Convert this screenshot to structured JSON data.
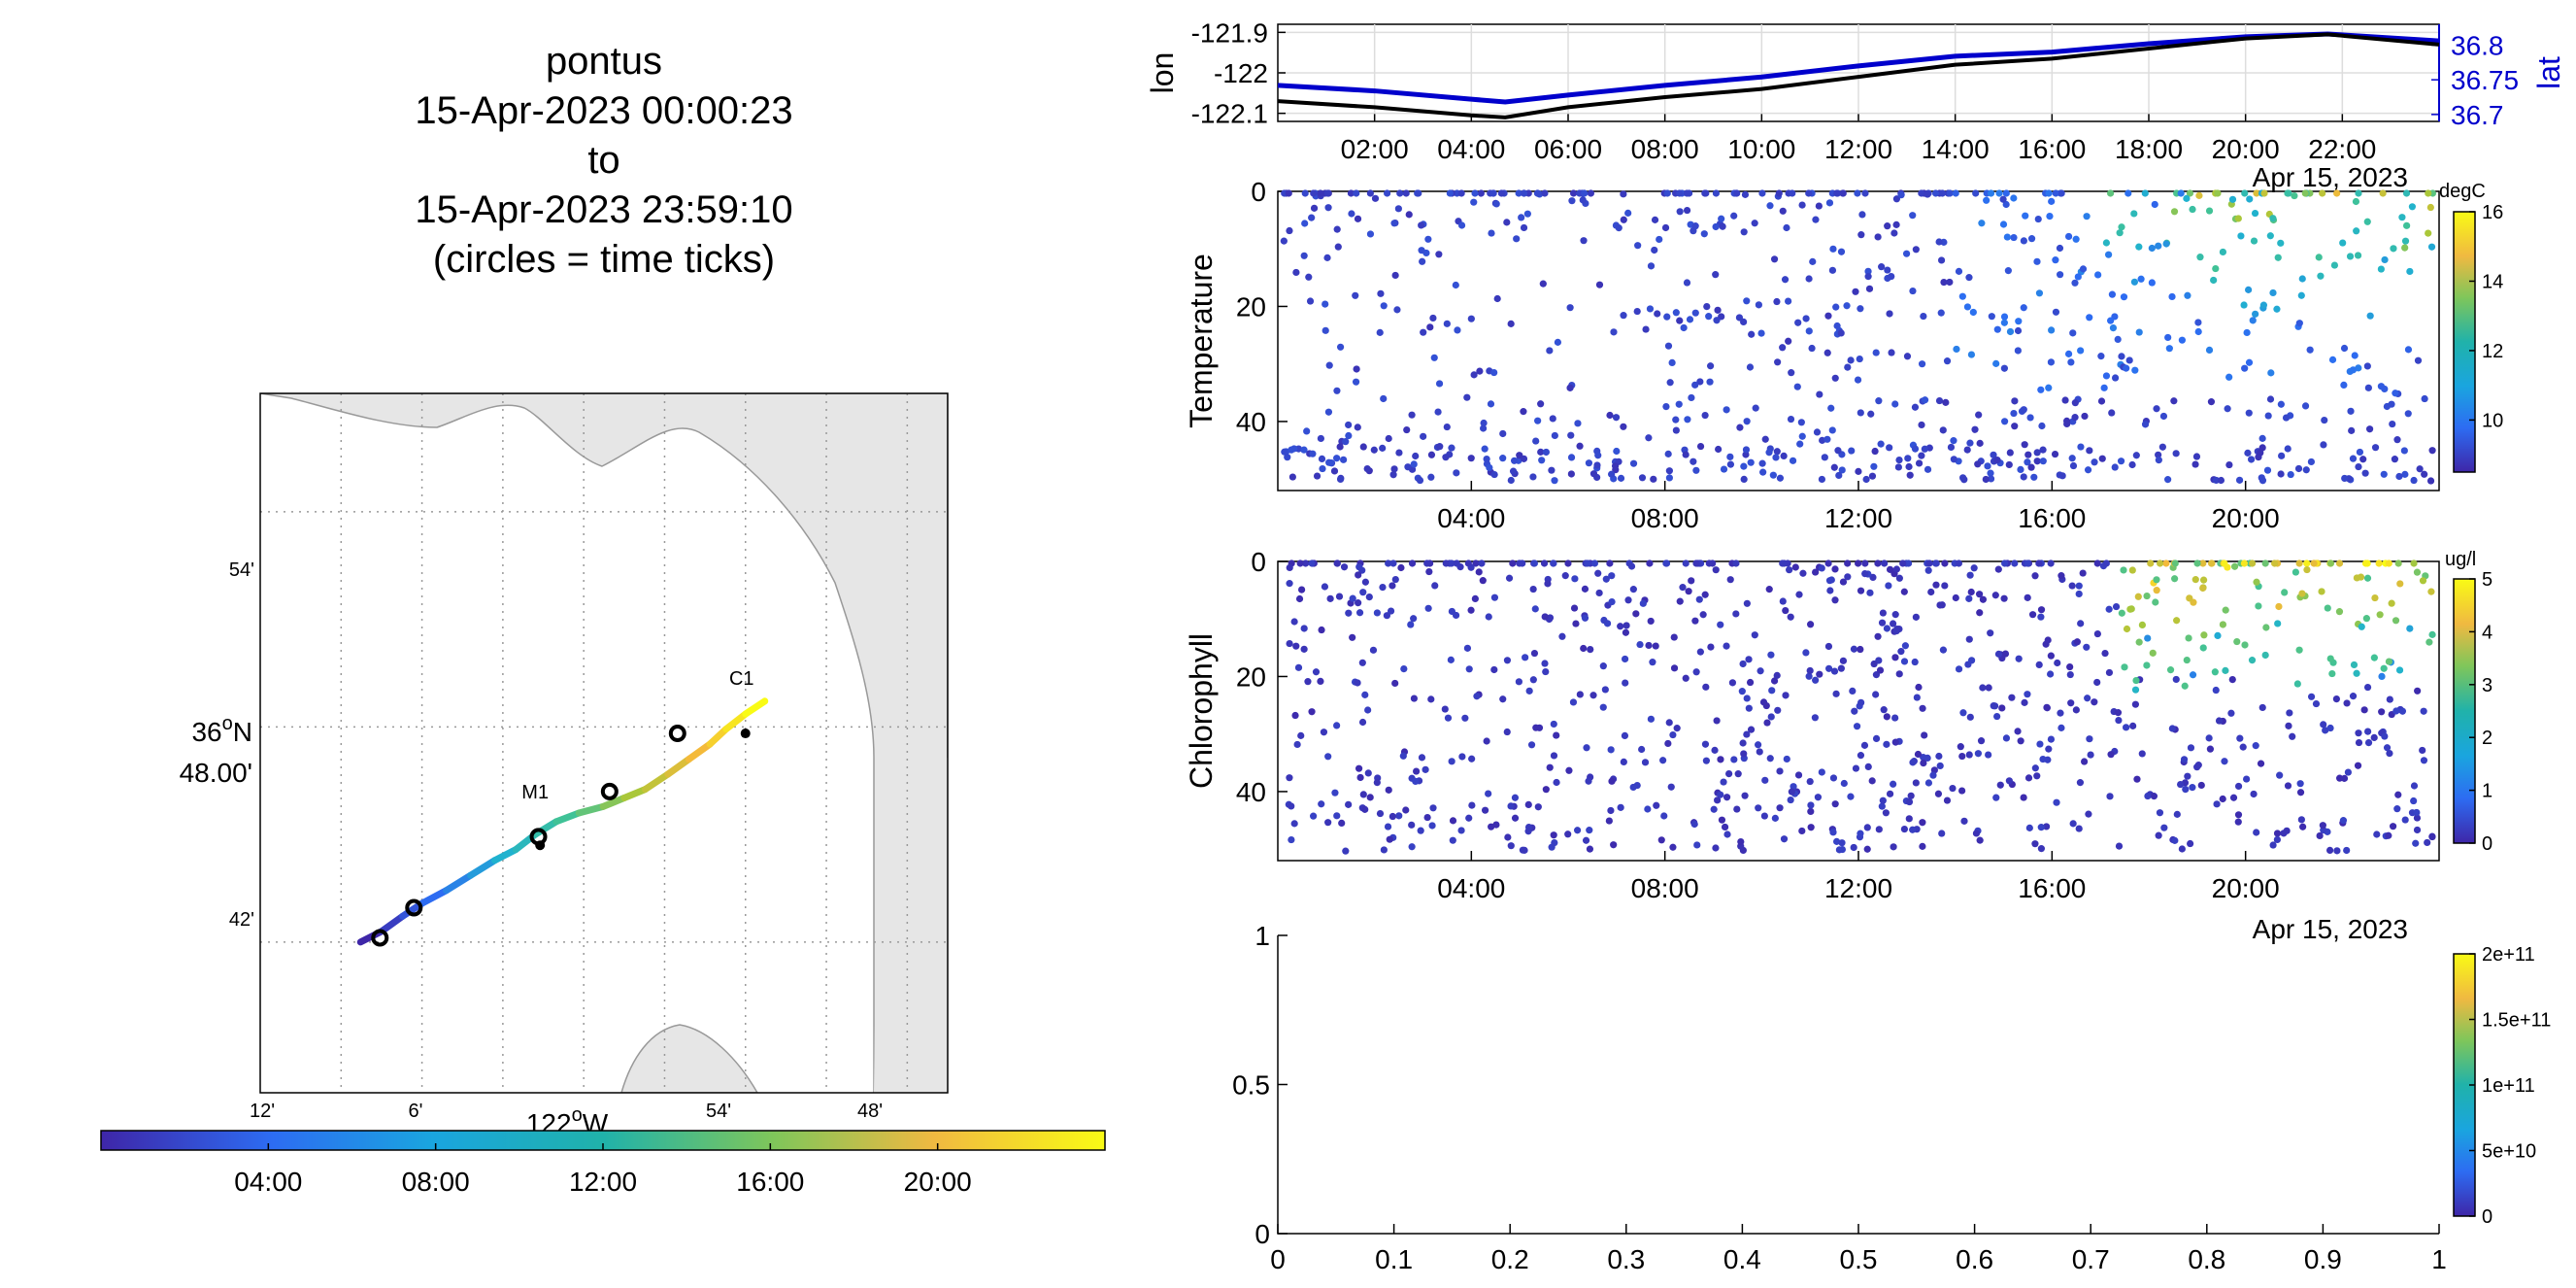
{
  "title": {
    "lines": [
      "pontus",
      "15-Apr-2023 00:00:23",
      "to",
      "15-Apr-2023 23:59:10",
      "(circles = time ticks)"
    ]
  },
  "map": {
    "lat_ticks": [
      "54'",
      "36°N 48.00'",
      "42'"
    ],
    "lat_label_deg": "36",
    "lat_label_min": "48.00'",
    "lon_ticks": [
      "12'",
      "6'",
      "122°W",
      "54'",
      "48'"
    ],
    "lon_label_deg": "122",
    "moorings": [
      {
        "name": "M1",
        "lon": -122.027,
        "lat": 36.745
      },
      {
        "name": "C1",
        "lon": -121.9,
        "lat": 36.797
      }
    ],
    "track": [
      [
        -122.138,
        36.7
      ],
      [
        -122.125,
        36.705
      ],
      [
        -122.112,
        36.712
      ],
      [
        -122.1,
        36.718
      ],
      [
        -122.085,
        36.724
      ],
      [
        -122.07,
        36.731
      ],
      [
        -122.055,
        36.738
      ],
      [
        -122.042,
        36.743
      ],
      [
        -122.03,
        36.75
      ],
      [
        -122.017,
        36.756
      ],
      [
        -122.003,
        36.76
      ],
      [
        -121.988,
        36.763
      ],
      [
        -121.975,
        36.767
      ],
      [
        -121.962,
        36.771
      ],
      [
        -121.948,
        36.778
      ],
      [
        -121.935,
        36.785
      ],
      [
        -121.922,
        36.792
      ],
      [
        -121.912,
        36.799
      ],
      [
        -121.9,
        36.806
      ],
      [
        -121.888,
        36.812
      ]
    ],
    "circles": [
      {
        "lon": -122.126,
        "lat": 36.702
      },
      {
        "lon": -122.105,
        "lat": 36.716
      },
      {
        "lon": -122.028,
        "lat": 36.749
      },
      {
        "lon": -121.984,
        "lat": 36.77
      },
      {
        "lon": -121.942,
        "lat": 36.797
      }
    ]
  },
  "time_colorbar": {
    "ticks": [
      "04:00",
      "08:00",
      "12:00",
      "16:00",
      "20:00"
    ],
    "colormap": [
      "#3e26a8",
      "#2d6cf2",
      "#20b2cf",
      "#40c297",
      "#aac739",
      "#f4ba3a",
      "#f9fb15"
    ]
  },
  "lonlat_panel": {
    "ylabel_left": "lon",
    "ylabel_right": "lat",
    "left_ticks": [
      "-121.9",
      "-122",
      "-122.1"
    ],
    "right_ticks": [
      "36.8",
      "36.75",
      "36.7"
    ],
    "x_ticks": [
      "02:00",
      "04:00",
      "06:00",
      "08:00",
      "10:00",
      "12:00",
      "14:00",
      "16:00",
      "18:00",
      "20:00",
      "22:00"
    ],
    "date_label": "Apr 15, 2023",
    "right_axis_color": "#0000cc"
  },
  "temperature_panel": {
    "ylabel": "Temperature",
    "y_ticks": [
      "0",
      "20",
      "40"
    ],
    "x_ticks": [
      "04:00",
      "08:00",
      "12:00",
      "16:00",
      "20:00"
    ],
    "date_label": "Apr 15, 2023",
    "cbar_unit": "degC",
    "cbar_ticks": [
      "16",
      "14",
      "12",
      "10"
    ]
  },
  "chlorophyll_panel": {
    "ylabel": "Chlorophyll",
    "y_ticks": [
      "0",
      "20",
      "40"
    ],
    "x_ticks": [
      "04:00",
      "08:00",
      "12:00",
      "16:00",
      "20:00"
    ],
    "date_label": "Apr 15, 2023",
    "cbar_unit": "ug/l",
    "cbar_ticks": [
      "5",
      "4",
      "3",
      "2",
      "1",
      "0"
    ]
  },
  "empty_panel": {
    "x_ticks": [
      "0",
      "0.1",
      "0.2",
      "0.3",
      "0.4",
      "0.5",
      "0.6",
      "0.7",
      "0.8",
      "0.9",
      "1"
    ],
    "y_ticks": [
      "1",
      "0.5",
      "0"
    ],
    "cbar_ticks": [
      "2e+11",
      "1.5e+11",
      "1e+11",
      "5e+10",
      "0"
    ]
  },
  "chart_data": [
    {
      "type": "line",
      "name": "lonlat",
      "x_unit": "hours since 15-Apr-2023 00:00",
      "series": [
        {
          "name": "lon",
          "x": [
            0,
            2,
            4,
            4.7,
            6,
            8,
            10,
            12,
            14,
            16,
            18,
            20,
            21.7,
            24
          ],
          "values": [
            -122.07,
            -122.085,
            -122.105,
            -122.11,
            -122.085,
            -122.06,
            -122.04,
            -122.01,
            -121.98,
            -121.965,
            -121.94,
            -121.915,
            -121.905,
            -121.93
          ]
        },
        {
          "name": "lat",
          "x": [
            0,
            2,
            4,
            4.7,
            6,
            8,
            10,
            12,
            14,
            16,
            18,
            20,
            21.7,
            24
          ],
          "values": [
            36.742,
            36.734,
            36.722,
            36.718,
            36.728,
            36.742,
            36.754,
            36.77,
            36.784,
            36.79,
            36.802,
            36.812,
            36.816,
            36.806
          ]
        }
      ],
      "ylim_left": [
        -122.12,
        -121.88
      ],
      "ylim_right": [
        36.69,
        36.83
      ],
      "xlim": [
        0,
        24
      ]
    },
    {
      "type": "scatter",
      "name": "temperature",
      "xlim": [
        0,
        24
      ],
      "ylim": [
        50,
        0
      ],
      "clim": [
        8.5,
        16
      ],
      "note": "profile samples colored by temperature (degC)"
    },
    {
      "type": "scatter",
      "name": "chlorophyll",
      "xlim": [
        0,
        24
      ],
      "ylim": [
        50,
        0
      ],
      "clim": [
        0,
        5
      ],
      "note": "profile samples colored by chlorophyll (ug/l)"
    },
    {
      "type": "scatter",
      "name": "empty",
      "xlim": [
        0,
        1
      ],
      "ylim": [
        0,
        1
      ],
      "clim": [
        0,
        200000000000
      ]
    }
  ]
}
